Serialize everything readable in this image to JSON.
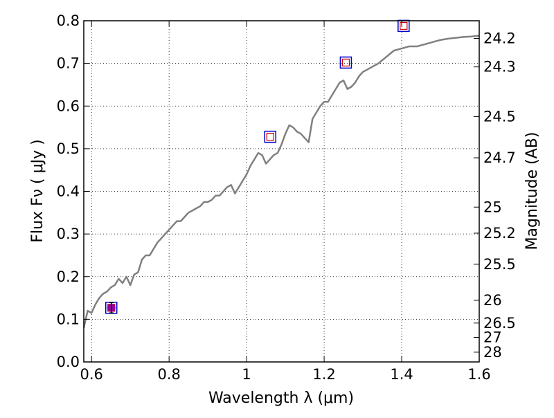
{
  "chart_data": {
    "type": "line",
    "title": "",
    "xlabel": "Wavelength  λ (μm)",
    "ylabel": "Flux  Fν  ( μJy )",
    "ylabel_right": "Magnitude (AB)",
    "xlim": [
      0.58,
      1.6
    ],
    "ylim": [
      0.0,
      0.8
    ],
    "grid": true,
    "x_ticks": [
      0.6,
      0.8,
      1.0,
      1.2,
      1.4,
      1.6
    ],
    "x_tick_labels": [
      "0.6",
      "0.8",
      "1",
      "1.2",
      "1.4",
      "1.6"
    ],
    "y_ticks": [
      0.0,
      0.1,
      0.2,
      0.3,
      0.4,
      0.5,
      0.6,
      0.7,
      0.8
    ],
    "y_tick_labels": [
      "0.0",
      "0.1",
      "0.2",
      "0.3",
      "0.4",
      "0.5",
      "0.6",
      "0.7",
      "0.8"
    ],
    "right_ticks_mag": [
      24.2,
      24.3,
      24.5,
      24.7,
      25,
      25.2,
      25.5,
      26,
      26.5,
      27,
      28
    ],
    "right_tick_labels": [
      "24.2",
      "24.3",
      "24.5",
      "24.7",
      "25",
      "25.2",
      "25.5",
      "26",
      "26.5",
      "27",
      "28"
    ],
    "series": [
      {
        "style": "line",
        "color": "#808080",
        "x": [
          0.58,
          0.59,
          0.6,
          0.61,
          0.62,
          0.63,
          0.64,
          0.65,
          0.66,
          0.67,
          0.68,
          0.69,
          0.7,
          0.71,
          0.72,
          0.73,
          0.74,
          0.75,
          0.76,
          0.77,
          0.78,
          0.79,
          0.8,
          0.81,
          0.82,
          0.83,
          0.84,
          0.85,
          0.86,
          0.87,
          0.88,
          0.89,
          0.9,
          0.91,
          0.92,
          0.93,
          0.94,
          0.95,
          0.96,
          0.97,
          0.98,
          0.99,
          1.0,
          1.01,
          1.02,
          1.03,
          1.04,
          1.05,
          1.06,
          1.07,
          1.08,
          1.09,
          1.1,
          1.11,
          1.12,
          1.13,
          1.14,
          1.15,
          1.16,
          1.17,
          1.18,
          1.19,
          1.2,
          1.21,
          1.22,
          1.23,
          1.24,
          1.25,
          1.26,
          1.27,
          1.28,
          1.29,
          1.3,
          1.32,
          1.34,
          1.36,
          1.38,
          1.4,
          1.42,
          1.44,
          1.46,
          1.48,
          1.5,
          1.52,
          1.54,
          1.56,
          1.58,
          1.6
        ],
        "values": [
          0.08,
          0.12,
          0.115,
          0.135,
          0.15,
          0.16,
          0.165,
          0.175,
          0.18,
          0.195,
          0.185,
          0.2,
          0.18,
          0.205,
          0.21,
          0.24,
          0.25,
          0.25,
          0.265,
          0.28,
          0.29,
          0.3,
          0.31,
          0.32,
          0.33,
          0.33,
          0.34,
          0.35,
          0.355,
          0.36,
          0.365,
          0.375,
          0.375,
          0.38,
          0.39,
          0.39,
          0.4,
          0.41,
          0.415,
          0.395,
          0.41,
          0.425,
          0.44,
          0.46,
          0.475,
          0.49,
          0.485,
          0.465,
          0.475,
          0.485,
          0.49,
          0.51,
          0.535,
          0.555,
          0.55,
          0.54,
          0.535,
          0.525,
          0.515,
          0.57,
          0.585,
          0.6,
          0.61,
          0.61,
          0.625,
          0.64,
          0.655,
          0.66,
          0.64,
          0.645,
          0.655,
          0.67,
          0.68,
          0.69,
          0.7,
          0.715,
          0.73,
          0.735,
          0.74,
          0.74,
          0.745,
          0.75,
          0.755,
          0.758,
          0.76,
          0.762,
          0.763,
          0.765
        ]
      },
      {
        "style": "open-square",
        "color": "#0000cc",
        "x": [
          0.651,
          1.061,
          1.256,
          1.405
        ],
        "values": [
          0.127,
          0.528,
          0.702,
          0.788
        ]
      },
      {
        "style": "small-square",
        "color": "#cc0000",
        "x": [
          0.651,
          1.061,
          1.256,
          1.405
        ],
        "values": [
          0.127,
          0.528,
          0.702,
          0.788
        ]
      },
      {
        "style": "filled-circle",
        "color": "#990099",
        "x": [
          0.651
        ],
        "values": [
          0.127
        ],
        "errors": [
          0.012
        ]
      }
    ]
  }
}
